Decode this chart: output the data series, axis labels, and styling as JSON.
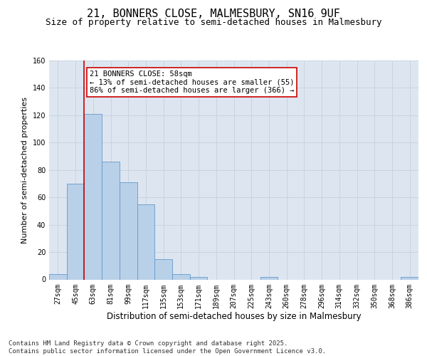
{
  "title1": "21, BONNERS CLOSE, MALMESBURY, SN16 9UF",
  "title2": "Size of property relative to semi-detached houses in Malmesbury",
  "xlabel": "Distribution of semi-detached houses by size in Malmesbury",
  "ylabel": "Number of semi-detached properties",
  "categories": [
    "27sqm",
    "45sqm",
    "63sqm",
    "81sqm",
    "99sqm",
    "117sqm",
    "135sqm",
    "153sqm",
    "171sqm",
    "189sqm",
    "207sqm",
    "225sqm",
    "243sqm",
    "260sqm",
    "278sqm",
    "296sqm",
    "314sqm",
    "332sqm",
    "350sqm",
    "368sqm",
    "386sqm"
  ],
  "values": [
    4,
    70,
    121,
    86,
    71,
    55,
    15,
    4,
    2,
    0,
    0,
    0,
    2,
    0,
    0,
    0,
    0,
    0,
    0,
    0,
    2
  ],
  "bar_color": "#b8d0e8",
  "bar_edge_color": "#6699cc",
  "vline_x": 1.5,
  "vline_color": "#cc0000",
  "annotation_text": "21 BONNERS CLOSE: 58sqm\n← 13% of semi-detached houses are smaller (55)\n86% of semi-detached houses are larger (366) →",
  "annotation_box_color": "#ffffff",
  "annotation_box_edge": "#cc0000",
  "ylim": [
    0,
    160
  ],
  "yticks": [
    0,
    20,
    40,
    60,
    80,
    100,
    120,
    140,
    160
  ],
  "grid_color": "#c8d4e0",
  "background_color": "#dde6f0",
  "footer_text": "Contains HM Land Registry data © Crown copyright and database right 2025.\nContains public sector information licensed under the Open Government Licence v3.0.",
  "title1_fontsize": 11,
  "title2_fontsize": 9,
  "xlabel_fontsize": 8.5,
  "ylabel_fontsize": 8,
  "tick_fontsize": 7,
  "annotation_fontsize": 7.5,
  "footer_fontsize": 6.5
}
